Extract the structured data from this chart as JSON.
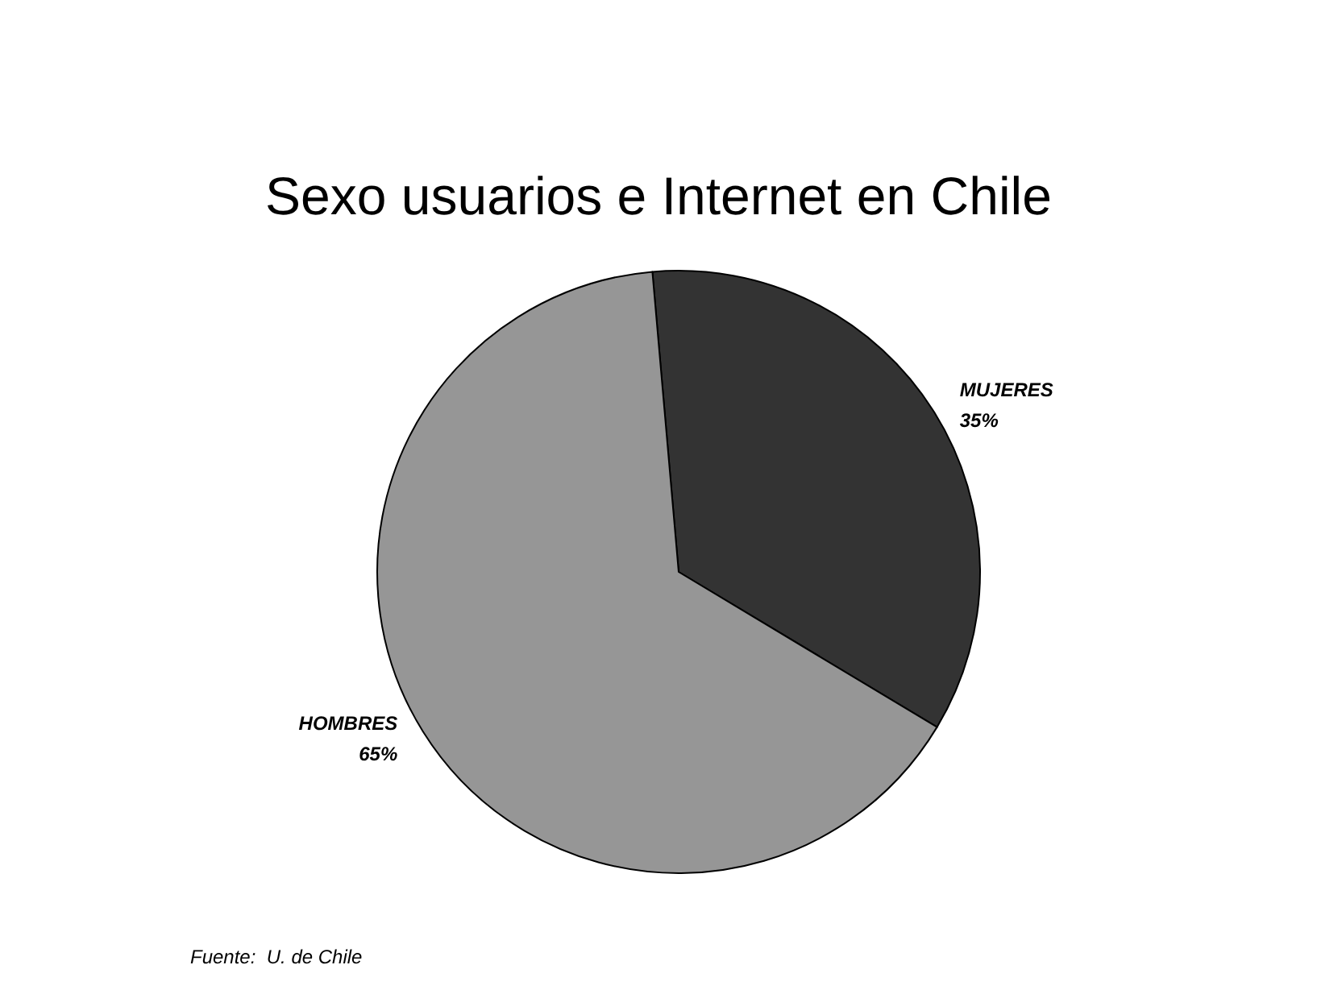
{
  "chart_data": {
    "type": "pie",
    "title": "Sexo usuarios e Internet en Chile",
    "categories": [
      "MUJERES",
      "HOMBRES"
    ],
    "values": [
      35,
      65
    ],
    "value_labels": [
      "35%",
      "65%"
    ],
    "colors": [
      "#333333",
      "#969696"
    ],
    "legend": false,
    "annotations": [
      "Fuente:  U. de Chile"
    ]
  }
}
